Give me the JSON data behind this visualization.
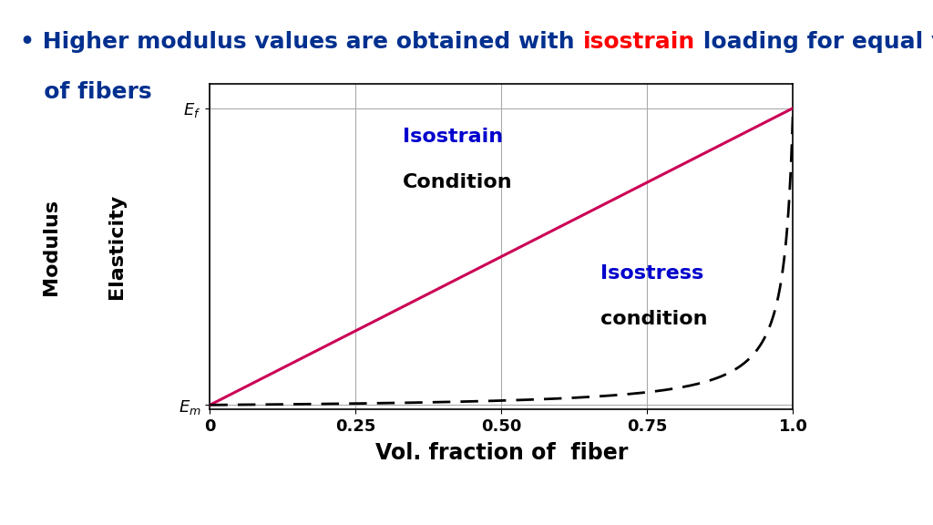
{
  "title_line1_parts": [
    {
      "text": "• Higher modulus values are obtained with ",
      "color": "#00308F",
      "bold": true
    },
    {
      "text": "isostrain",
      "color": "#FF0000",
      "bold": true
    },
    {
      "text": " loading for equal volume",
      "color": "#00308F",
      "bold": true
    }
  ],
  "title_line2": "   of fibers",
  "title_line2_color": "#00308F",
  "xlabel": "Vol. fraction of  fiber",
  "ylabel1": "Modulus",
  "ylabel2": "Elasticity",
  "xticks": [
    0,
    0.25,
    0.5,
    0.75,
    1.0
  ],
  "xtick_labels": [
    "0",
    "0.25",
    "0.50",
    "0.75",
    "1.0"
  ],
  "xlim": [
    0,
    1.0
  ],
  "Em": 0.15,
  "Ef": 10.0,
  "isostrain_label": "Isostrain",
  "isostrain_label2": "Condition",
  "isostrain_label_color": "#0000CD",
  "isostress_label": "Isostress",
  "isostress_label2": "condition",
  "isostress_label_color": "#0000CD",
  "isostrain_line_color": "#CC0055",
  "isostress_line_color": "#000000",
  "background_color": "#FFFFFF",
  "grid_color": "#AAAAAA",
  "title_fontsize": 18,
  "label_fontsize": 16,
  "tick_fontsize": 13,
  "annotation_fontsize": 16
}
